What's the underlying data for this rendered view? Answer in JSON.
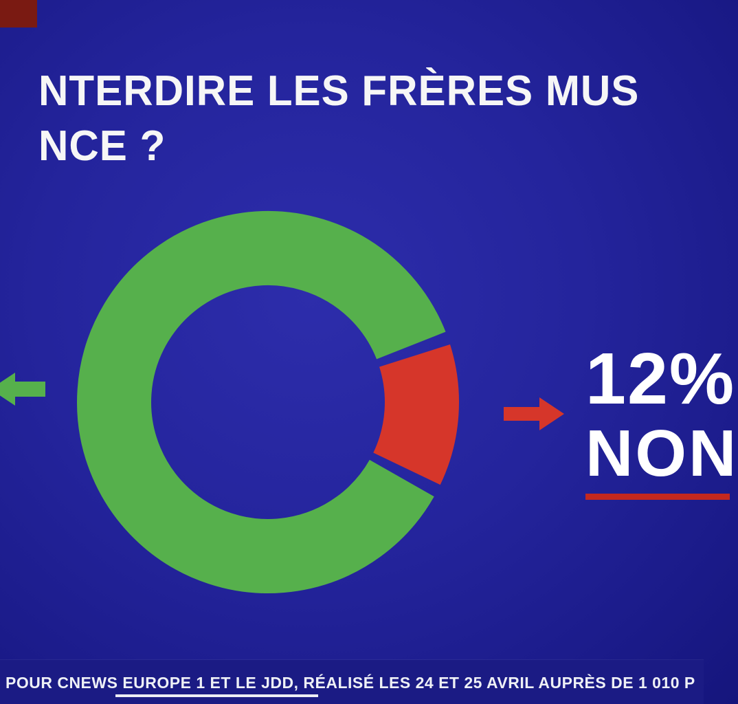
{
  "title": {
    "line1": "NTERDIRE LES FRÈRES MUS",
    "line2": "NCE ?"
  },
  "chart_data": {
    "type": "pie",
    "donut": true,
    "title": "NTERDIRE LES FRÈRES MUS... NCE ?",
    "legend_position": "none",
    "slices": [
      {
        "label": "",
        "value": 88,
        "color": "#56b04c"
      },
      {
        "label": "NON",
        "value": 12,
        "color": "#d6362a"
      }
    ],
    "visible_data_label": "12% NON"
  },
  "result": {
    "percent": "12%",
    "answer": "NON",
    "arrow_color": "#d6362a",
    "underline_color": "#c4281e"
  },
  "left_indicator": {
    "color": "#56b04c"
  },
  "footer": {
    "text": "POUR CNEWS EUROPE 1 ET LE JDD, RÉALISÉ LES 24 ET 25 AVRIL AUPRÈS DE 1 010 P"
  },
  "colors": {
    "background": "#24249c",
    "footer_bar": "#1b1b84",
    "corner_block": "#7a1a12",
    "text": "#ffffff"
  }
}
